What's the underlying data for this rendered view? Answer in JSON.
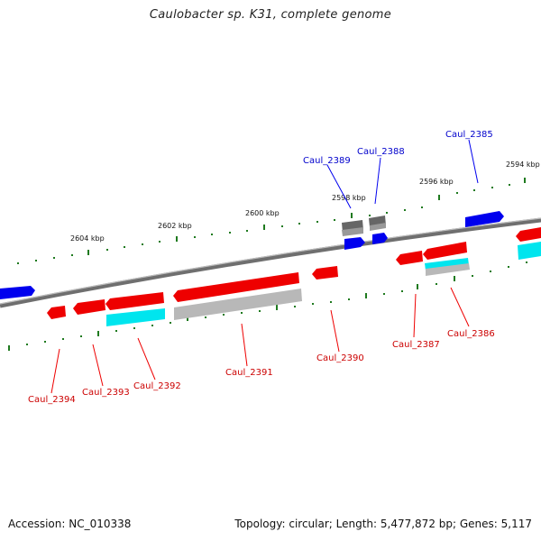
{
  "title": "Caulobacter sp. K31, complete genome",
  "footer": {
    "accession": "Accession: NC_010338",
    "summary": "Topology: circular; Length: 5,477,872 bp; Genes: 5,117"
  },
  "colors": {
    "forward_gene": "#0000ee",
    "reverse_gene": "#ee0000",
    "cds_feature": "#00e5ee",
    "rna_feature": "#b8b8b8",
    "backbone": "#777777",
    "ticks": "#228822"
  },
  "tick_labels": [
    "2604 kbp",
    "2602 kbp",
    "2600 kbp",
    "2598 kbp",
    "2596 kbp",
    "2594 kbp"
  ],
  "genes_forward": [
    {
      "label": "Caul_2389"
    },
    {
      "label": "Caul_2388"
    },
    {
      "label": "Caul_2385"
    }
  ],
  "genes_reverse": [
    {
      "label": "Caul_2394"
    },
    {
      "label": "Caul_2393"
    },
    {
      "label": "Caul_2392"
    },
    {
      "label": "Caul_2391"
    },
    {
      "label": "Caul_2390"
    },
    {
      "label": "Caul_2387"
    },
    {
      "label": "Caul_2386"
    }
  ]
}
